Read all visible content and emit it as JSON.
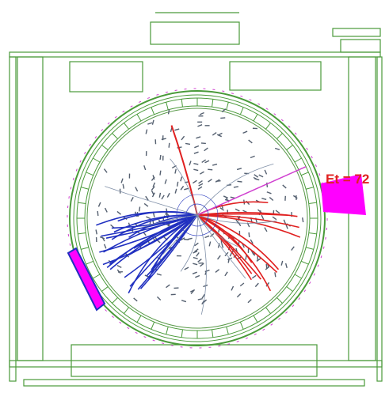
{
  "annotation": "Et = 72"
}
